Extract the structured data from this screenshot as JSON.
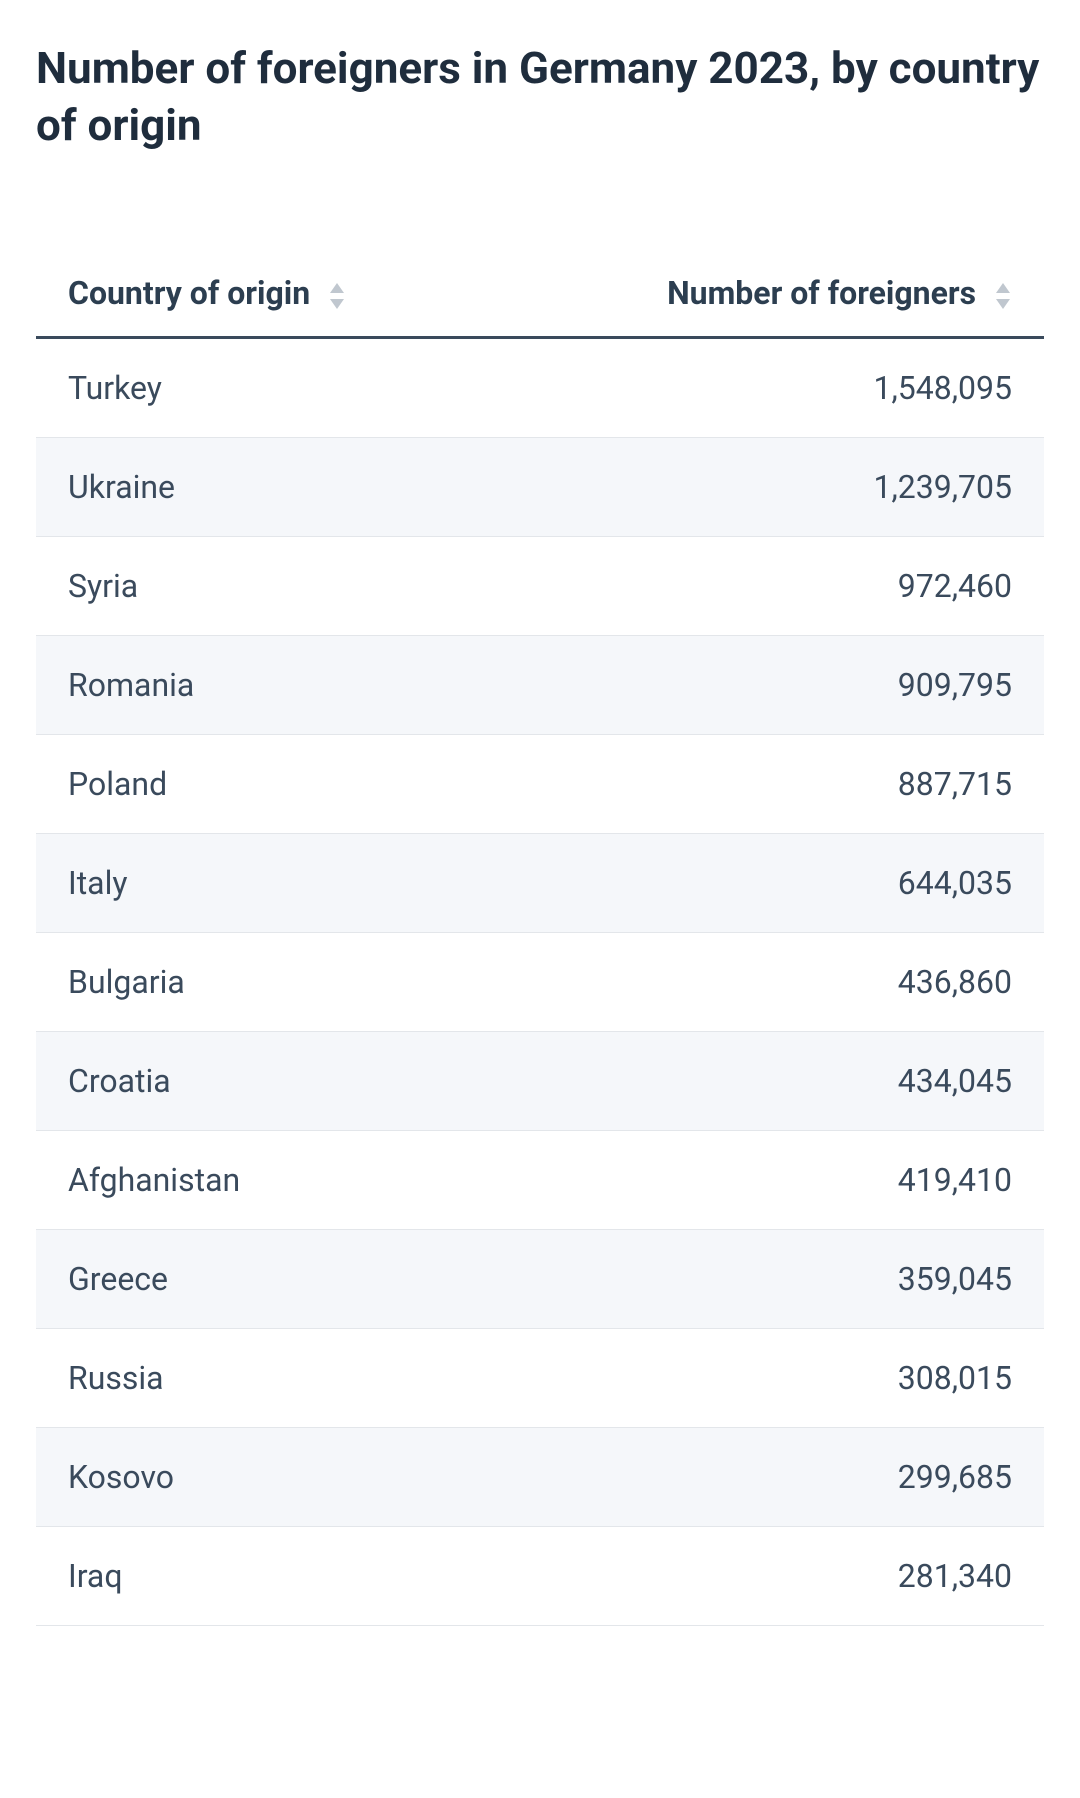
{
  "title": "Number of foreigners in Germany 2023, by country of origin",
  "table": {
    "columns": [
      {
        "label": "Country of origin",
        "align": "left"
      },
      {
        "label": "Number of foreigners",
        "align": "right"
      }
    ],
    "rows": [
      {
        "country": "Turkey",
        "value": "1,548,095"
      },
      {
        "country": "Ukraine",
        "value": "1,239,705"
      },
      {
        "country": "Syria",
        "value": "972,460"
      },
      {
        "country": "Romania",
        "value": "909,795"
      },
      {
        "country": "Poland",
        "value": "887,715"
      },
      {
        "country": "Italy",
        "value": "644,035"
      },
      {
        "country": "Bulgaria",
        "value": "436,860"
      },
      {
        "country": "Croatia",
        "value": "434,045"
      },
      {
        "country": "Afghanistan",
        "value": "419,410"
      },
      {
        "country": "Greece",
        "value": "359,045"
      },
      {
        "country": "Russia",
        "value": "308,015"
      },
      {
        "country": "Kosovo",
        "value": "299,685"
      },
      {
        "country": "Iraq",
        "value": "281,340"
      }
    ],
    "styling": {
      "title_color": "#1f2d3d",
      "title_fontsize": 44,
      "title_fontweight": 700,
      "header_color": "#2c3e50",
      "header_fontsize": 32,
      "header_fontweight": 700,
      "header_border_color": "#3a4a5c",
      "header_border_width": 3,
      "cell_color": "#3a4a5c",
      "cell_fontsize": 32,
      "cell_fontweight": 400,
      "row_border_color": "#e3e6ea",
      "row_alt_background": "#f5f7fa",
      "sort_icon_color": "#c0c7cf",
      "background_color": "#ffffff"
    }
  }
}
